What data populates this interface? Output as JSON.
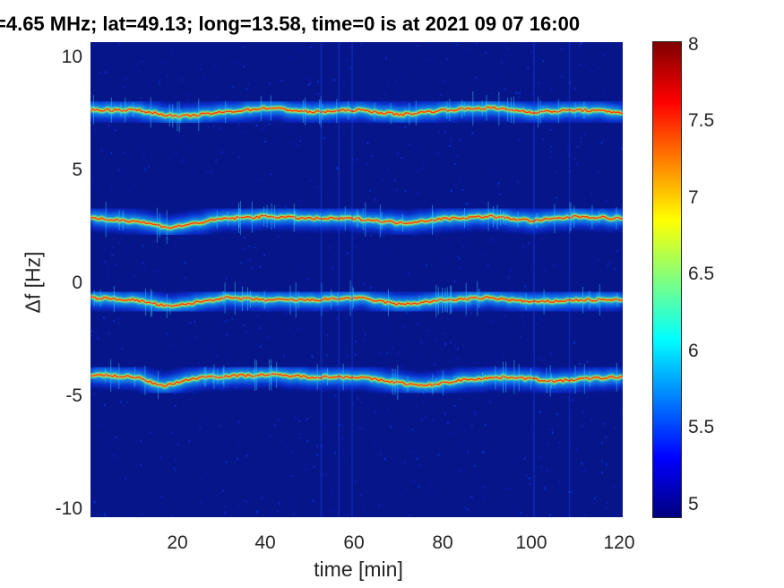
{
  "chart_data": {
    "type": "heatmap",
    "title": "=4.65 MHz;  lat=49.13; long=13.58, time=0 is at 2021 09 07 16:00",
    "xlabel": "time [min]",
    "ylabel": "Δf [Hz]",
    "xlim": [
      0,
      120
    ],
    "ylim": [
      -10.5,
      10.5
    ],
    "xticks": [
      "20",
      "40",
      "60",
      "80",
      "100",
      "120"
    ],
    "yticks": [
      "10",
      "5",
      "0",
      "-5",
      "-10"
    ],
    "colorbar": {
      "clim": [
        4.9,
        8.0
      ],
      "ticks": [
        "8",
        "7.5",
        "7",
        "6.5",
        "6",
        "5.5",
        "5"
      ],
      "colormap": "jet"
    },
    "traces": [
      {
        "baseline": 7.4,
        "points": [
          [
            0,
            7.5
          ],
          [
            10,
            7.5
          ],
          [
            20,
            7.2
          ],
          [
            30,
            7.4
          ],
          [
            40,
            7.6
          ],
          [
            50,
            7.4
          ],
          [
            60,
            7.5
          ],
          [
            70,
            7.3
          ],
          [
            80,
            7.5
          ],
          [
            90,
            7.6
          ],
          [
            100,
            7.4
          ],
          [
            110,
            7.5
          ],
          [
            120,
            7.4
          ]
        ]
      },
      {
        "baseline": 2.7,
        "points": [
          [
            0,
            2.7
          ],
          [
            10,
            2.6
          ],
          [
            18,
            2.3
          ],
          [
            30,
            2.7
          ],
          [
            40,
            2.8
          ],
          [
            50,
            2.7
          ],
          [
            60,
            2.7
          ],
          [
            70,
            2.5
          ],
          [
            80,
            2.7
          ],
          [
            90,
            2.8
          ],
          [
            100,
            2.6
          ],
          [
            110,
            2.8
          ],
          [
            120,
            2.7
          ]
        ]
      },
      {
        "baseline": -0.9,
        "points": [
          [
            0,
            -0.8
          ],
          [
            10,
            -0.9
          ],
          [
            18,
            -1.2
          ],
          [
            30,
            -0.8
          ],
          [
            40,
            -0.9
          ],
          [
            50,
            -0.9
          ],
          [
            60,
            -0.8
          ],
          [
            70,
            -1.1
          ],
          [
            80,
            -0.9
          ],
          [
            90,
            -0.8
          ],
          [
            100,
            -1.0
          ],
          [
            110,
            -0.9
          ],
          [
            120,
            -0.9
          ]
        ]
      },
      {
        "baseline": -4.3,
        "points": [
          [
            0,
            -4.2
          ],
          [
            10,
            -4.3
          ],
          [
            16,
            -4.7
          ],
          [
            25,
            -4.3
          ],
          [
            40,
            -4.2
          ],
          [
            50,
            -4.3
          ],
          [
            60,
            -4.3
          ],
          [
            75,
            -4.7
          ],
          [
            85,
            -4.4
          ],
          [
            95,
            -4.3
          ],
          [
            105,
            -4.5
          ],
          [
            110,
            -4.4
          ],
          [
            120,
            -4.3
          ]
        ]
      }
    ]
  }
}
